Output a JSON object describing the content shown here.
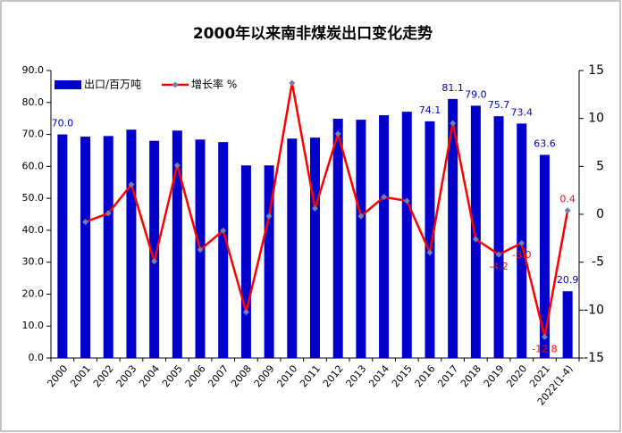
{
  "chart_data": {
    "type": "bar-line",
    "title": "2000年以来南非煤炭出口变化走势",
    "categories": [
      "2000",
      "2001",
      "2002",
      "2003",
      "2004",
      "2005",
      "2006",
      "2007",
      "2008",
      "2009",
      "2010",
      "2011",
      "2012",
      "2013",
      "2014",
      "2015",
      "2016",
      "2017",
      "2018",
      "2019",
      "2020",
      "2021",
      "2022(1-4)"
    ],
    "series": [
      {
        "name": "出口/百万吨",
        "color": "#0000cc",
        "type": "bar",
        "axis": "y",
        "values": [
          70.0,
          69.3,
          69.5,
          71.5,
          68.0,
          71.2,
          68.4,
          67.6,
          60.3,
          60.3,
          68.7,
          69.0,
          74.9,
          74.6,
          76.0,
          77.1,
          74.1,
          81.1,
          79.0,
          75.7,
          73.4,
          63.6,
          20.9
        ],
        "value_labels": [
          "70.0",
          null,
          null,
          null,
          null,
          null,
          null,
          null,
          null,
          null,
          null,
          null,
          null,
          null,
          null,
          null,
          "74.1",
          "81.1",
          "79.0",
          "75.7",
          "73.4",
          "63.6",
          "20.9"
        ]
      },
      {
        "name": "增长率 %",
        "color": "#ff0000",
        "type": "line",
        "axis": "y2",
        "values": [
          null,
          -0.8,
          0.1,
          3.1,
          -4.9,
          5.1,
          -3.7,
          -1.7,
          -10.2,
          -0.2,
          13.7,
          0.6,
          8.4,
          -0.2,
          1.8,
          1.4,
          -4.0,
          9.5,
          -2.6,
          -4.2,
          -3.0,
          -12.8,
          0.4
        ],
        "value_labels": [
          null,
          null,
          null,
          null,
          null,
          null,
          null,
          null,
          null,
          null,
          null,
          null,
          null,
          null,
          null,
          null,
          null,
          null,
          null,
          "-4.2",
          "-3.0",
          "-12.8",
          "0.4"
        ]
      }
    ],
    "ylim": [
      0,
      90
    ],
    "yticks": [
      {
        "value": 0,
        "label": "0.0"
      },
      {
        "value": 10,
        "label": "10.0"
      },
      {
        "value": 20,
        "label": "20.0"
      },
      {
        "value": 30,
        "label": "30.0"
      },
      {
        "value": 40,
        "label": "40.0"
      },
      {
        "value": 50,
        "label": "50.0"
      },
      {
        "value": 60,
        "label": "60.0"
      },
      {
        "value": 70,
        "label": "70.0"
      },
      {
        "value": 80,
        "label": "80.0"
      },
      {
        "value": 90,
        "label": "90.0"
      }
    ],
    "y2lim": [
      -15,
      15
    ],
    "y2ticks": [
      -15,
      -10,
      -5,
      0,
      5,
      10,
      15
    ],
    "legend": "top-left"
  }
}
